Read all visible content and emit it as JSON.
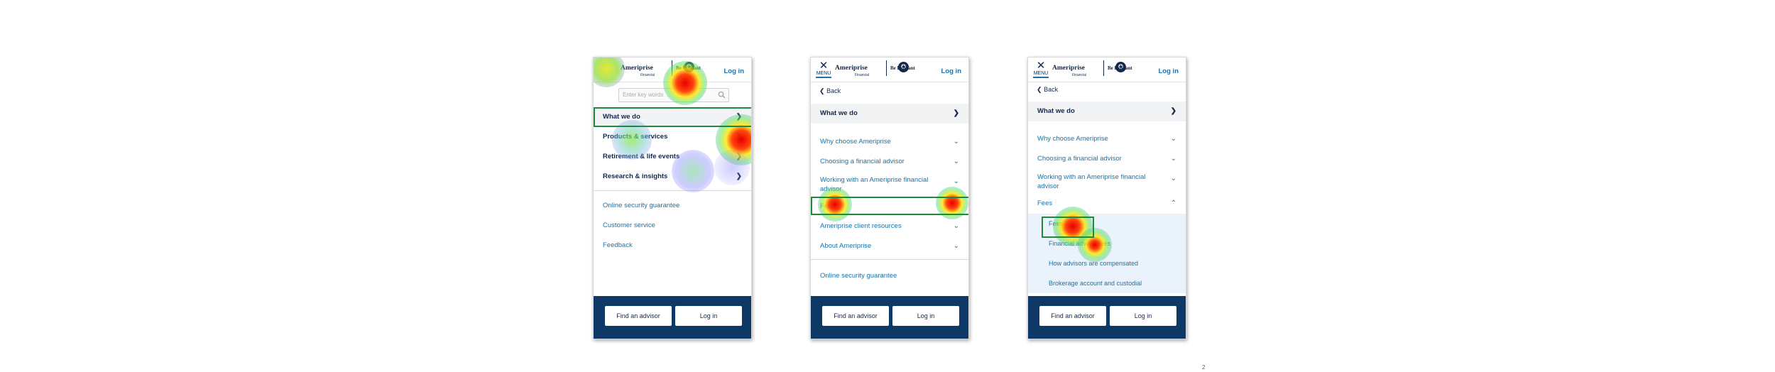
{
  "brand": {
    "name": "Ameriprise",
    "sub": "Financial",
    "tagline": "Be Brilliant",
    "login": "Log in",
    "menu_label": "MENU",
    "menu_icon": "close-icon"
  },
  "screen1": {
    "search_placeholder": "Enter key words",
    "nav": [
      {
        "label": "What we do"
      },
      {
        "label": "Products & services"
      },
      {
        "label": "Retirement & life events"
      },
      {
        "label": "Research & insights"
      }
    ],
    "links": [
      {
        "label": "Online security guarantee"
      },
      {
        "label": "Customer service"
      },
      {
        "label": "Feedback"
      }
    ]
  },
  "screen2": {
    "back": "Back",
    "section": "What we do",
    "items": [
      {
        "label": "Why choose Ameriprise"
      },
      {
        "label": "Choosing a financial advisor"
      },
      {
        "label": "Working with an Ameriprise financial advisor"
      },
      {
        "label": "Fees"
      },
      {
        "label": "Ameriprise client resources"
      },
      {
        "label": "About Ameriprise"
      }
    ],
    "link": "Online security guarantee"
  },
  "screen3": {
    "back": "Back",
    "section": "What we do",
    "items": [
      {
        "label": "Why choose Ameriprise"
      },
      {
        "label": "Choosing a financial advisor"
      },
      {
        "label": "Working with an Ameriprise financial advisor"
      },
      {
        "label": "Fees"
      }
    ],
    "subitems": [
      {
        "label": "Fees"
      },
      {
        "label": "Financial advisor fees"
      },
      {
        "label": "How advisors are compensated"
      },
      {
        "label": "Brokerage account and custodial"
      }
    ]
  },
  "footer": {
    "find_advisor": "Find an advisor",
    "login": "Log in"
  },
  "page_number": "2",
  "colors": {
    "navy": "#16284a",
    "link_blue": "#1a73a8",
    "footer_bg": "#0e3966",
    "highlight_green": "#1e8a3a"
  }
}
